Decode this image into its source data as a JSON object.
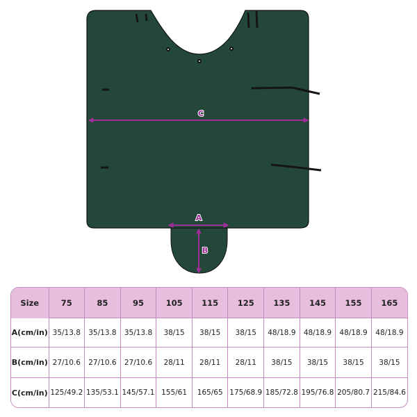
{
  "diagram": {
    "labels": {
      "a": "A",
      "b": "B",
      "c": "C"
    },
    "colors": {
      "blanket": "#23483a",
      "arrow": "#a02d98",
      "table_header": "#e8bedf",
      "table_border": "#c58bbd"
    }
  },
  "table": {
    "header_label": "Size",
    "sizes": [
      "75",
      "85",
      "95",
      "105",
      "115",
      "125",
      "135",
      "145",
      "155",
      "165"
    ],
    "rows": [
      {
        "label": "A(cm/in)",
        "values": [
          "35/13.8",
          "35/13.8",
          "35/13.8",
          "38/15",
          "38/15",
          "38/15",
          "48/18.9",
          "48/18.9",
          "48/18.9",
          "48/18.9"
        ]
      },
      {
        "label": "B(cm/in)",
        "values": [
          "27/10.6",
          "27/10.6",
          "27/10.6",
          "28/11",
          "28/11",
          "28/11",
          "38/15",
          "38/15",
          "38/15",
          "38/15"
        ]
      },
      {
        "label": "C(cm/in)",
        "values": [
          "125/49.2",
          "135/53.1",
          "145/57.1",
          "155/61",
          "165/65",
          "175/68.9",
          "185/72.8",
          "195/76.8",
          "205/80.7",
          "215/84.6"
        ]
      }
    ]
  }
}
